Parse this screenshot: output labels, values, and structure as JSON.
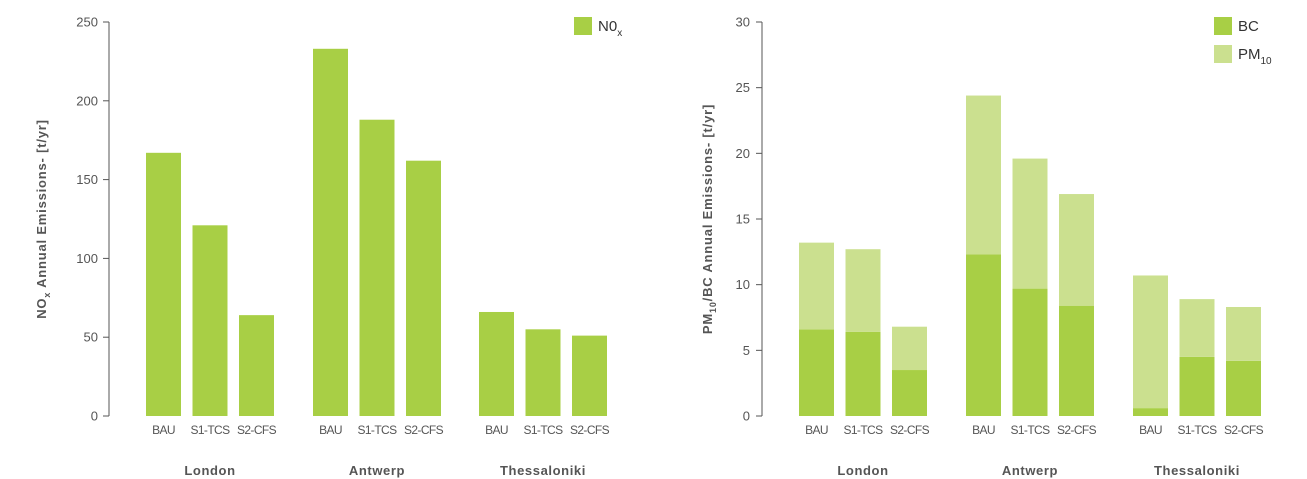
{
  "chart_data": [
    {
      "type": "bar",
      "groups": [
        "London",
        "Antwerp",
        "Thessaloniki"
      ],
      "categories": [
        "BAU",
        "S1-TCS",
        "S2-CFS"
      ],
      "series": [
        {
          "name": "N0",
          "name_sub": "x",
          "color": "#a8cf45",
          "values": [
            [
              167,
              121,
              64
            ],
            [
              233,
              188,
              162
            ],
            [
              66,
              55,
              51
            ]
          ]
        }
      ],
      "ylabel": "NO",
      "ylabel_sub": "x",
      "ylabel_rest": " Annual Emissions- [t/yr]",
      "yticks": [
        0,
        50,
        100,
        150,
        200,
        250
      ],
      "ylim": [
        0,
        250
      ],
      "legend_position": "top-right",
      "grid": false
    },
    {
      "type": "bar",
      "stacked": true,
      "groups": [
        "London",
        "Antwerp",
        "Thessaloniki"
      ],
      "categories": [
        "BAU",
        "S1-TCS",
        "S2-CFS"
      ],
      "series": [
        {
          "name": "BC",
          "name_sub": "",
          "color": "#a8cf45",
          "values": [
            [
              6.6,
              6.4,
              3.5
            ],
            [
              12.3,
              9.7,
              8.4
            ],
            [
              0.6,
              4.5,
              4.2
            ]
          ]
        },
        {
          "name": "PM",
          "name_sub": "10",
          "color": "#cbe08f",
          "values": [
            [
              6.6,
              6.3,
              3.3
            ],
            [
              12.1,
              9.9,
              8.5
            ],
            [
              10.1,
              4.4,
              4.1
            ]
          ]
        }
      ],
      "ylabel": "PM",
      "ylabel_sub": "10",
      "ylabel_rest": "/BC  Annual Emissions- [t/yr]",
      "yticks": [
        0,
        5,
        10,
        15,
        20,
        25,
        30
      ],
      "ylim": [
        0,
        30
      ],
      "legend_position": "top-right",
      "grid": false
    }
  ]
}
